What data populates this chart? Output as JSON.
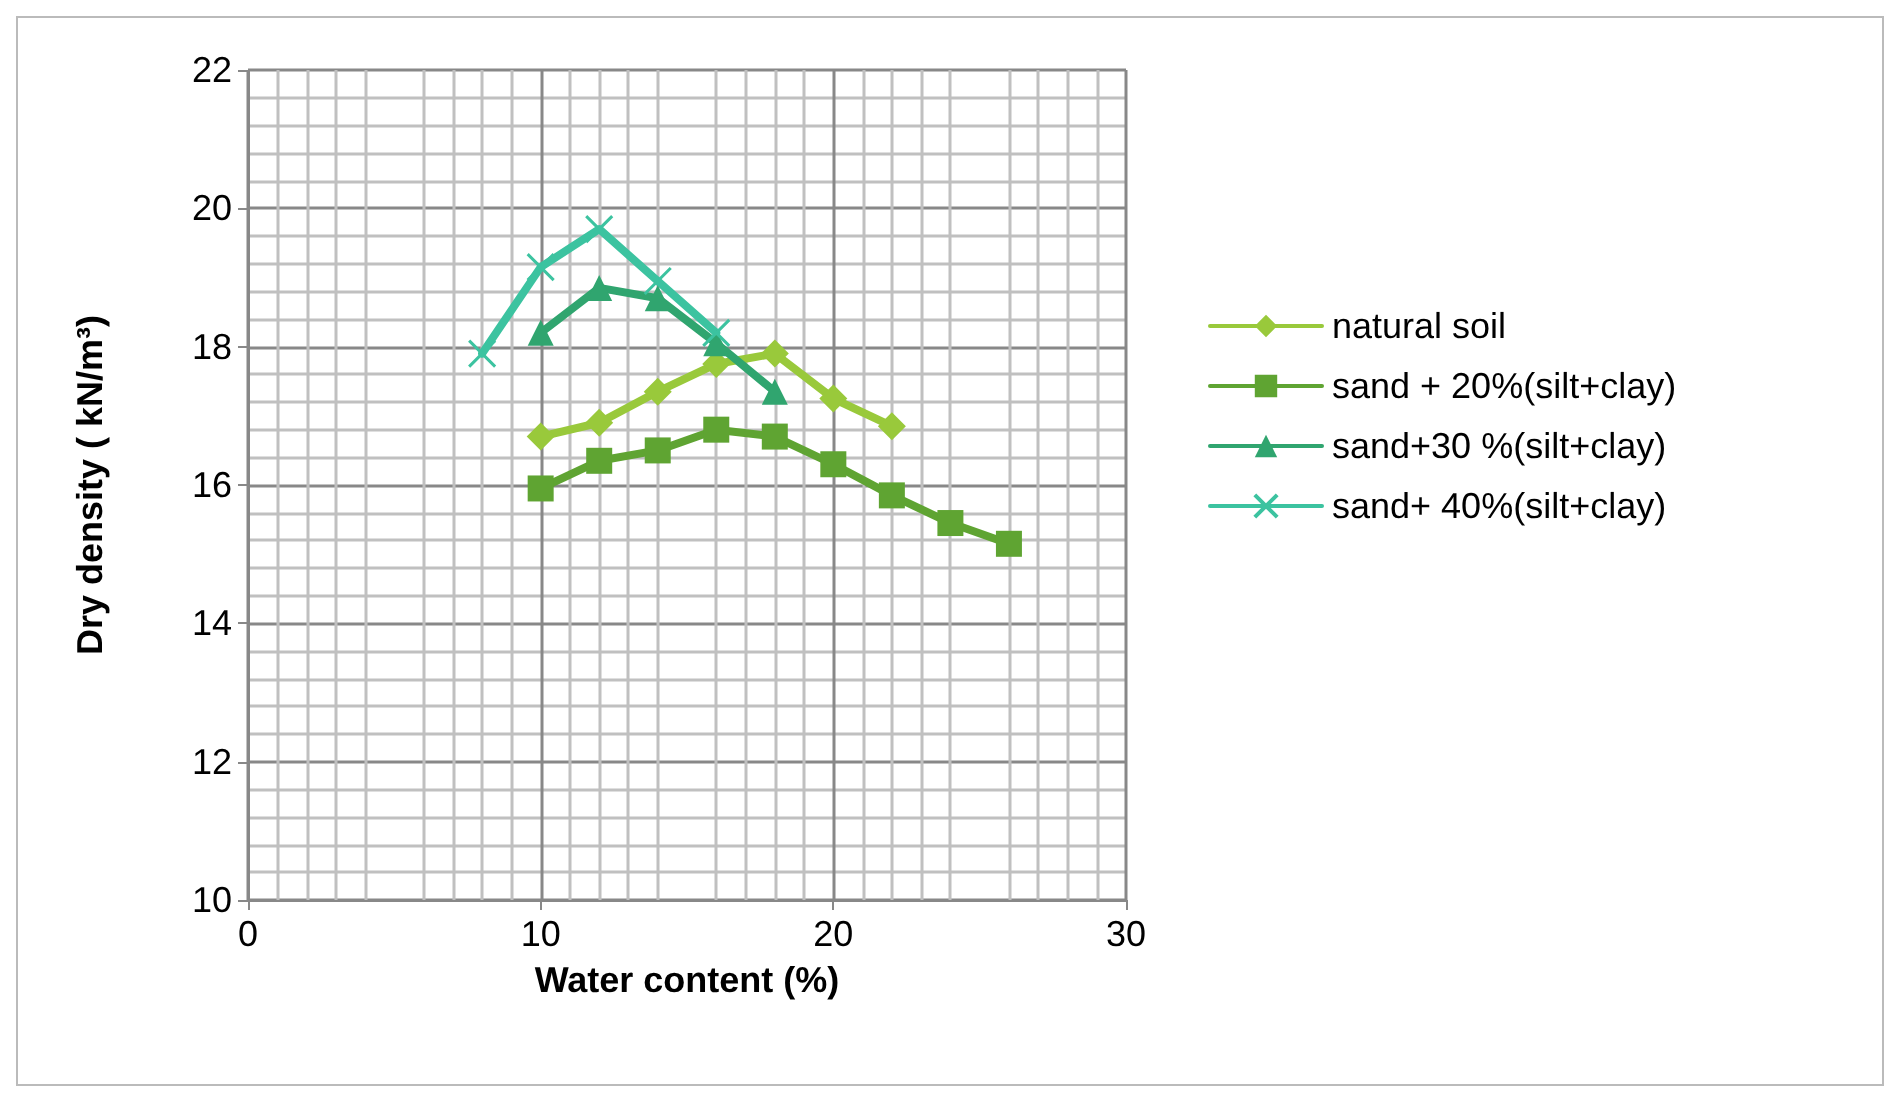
{
  "chart_data": {
    "type": "line",
    "xlabel": "Water content (%)",
    "ylabel": "Dry density ( kN/m³)",
    "xlim": [
      0,
      30
    ],
    "xticks": [
      0,
      10,
      20,
      30
    ],
    "ylim": [
      10,
      22
    ],
    "yticks": [
      10,
      12,
      14,
      16,
      18,
      20,
      22
    ],
    "grid": true,
    "legend": "right",
    "line_style": "solid",
    "series": [
      {
        "name": "natural soil",
        "color": "#99c93b",
        "marker": "diamond",
        "x": [
          10,
          12,
          14,
          16,
          18,
          20,
          22
        ],
        "values": [
          16.7,
          16.9,
          17.35,
          17.75,
          17.9,
          17.25,
          16.85
        ]
      },
      {
        "name": "sand + 20%(silt+clay)",
        "color": "#5fa432",
        "marker": "square",
        "x": [
          10,
          12,
          14,
          16,
          18,
          20,
          22,
          24,
          26
        ],
        "values": [
          15.95,
          16.35,
          16.5,
          16.8,
          16.7,
          16.3,
          15.85,
          15.45,
          15.15
        ]
      },
      {
        "name": "sand+30 %(silt+clay)",
        "color": "#30a56f",
        "marker": "triangle",
        "x": [
          10,
          12,
          14,
          16,
          18
        ],
        "values": [
          18.2,
          18.85,
          18.7,
          18.05,
          17.35
        ]
      },
      {
        "name": "sand+ 40%(silt+clay)",
        "color": "#3cc3a0",
        "marker": "cross",
        "x": [
          8,
          10,
          12,
          14,
          16
        ],
        "values": [
          17.9,
          19.15,
          19.7,
          18.95,
          18.2
        ]
      }
    ]
  }
}
